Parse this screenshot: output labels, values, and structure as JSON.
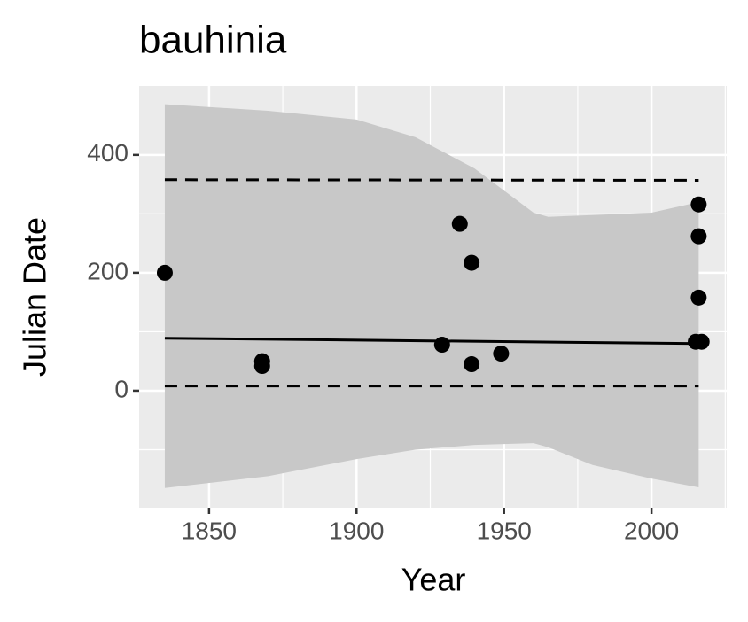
{
  "chart_data": {
    "type": "scatter",
    "title": "bauhinia",
    "x_label": "Year",
    "y_label": "Julian Date",
    "x": [
      1835,
      1868,
      1868,
      1929,
      1935,
      1939,
      1939,
      1949,
      2016,
      2016,
      2016,
      2015,
      2017
    ],
    "y": [
      200,
      50,
      42,
      78,
      283,
      217,
      45,
      63,
      316,
      262,
      158,
      83,
      83
    ],
    "point_color": "#000000",
    "trend": {
      "x": [
        1835,
        2016
      ],
      "y": [
        89,
        80
      ],
      "color": "#000000"
    },
    "quantile_lines": [
      {
        "x": [
          1835,
          2016
        ],
        "y": [
          358,
          357
        ]
      },
      {
        "x": [
          1835,
          2016
        ],
        "y": [
          8,
          8
        ]
      }
    ],
    "ribbon": {
      "color": "#c8c8c8",
      "x": [
        1835,
        1870,
        1900,
        1920,
        1940,
        1960,
        1965,
        1980,
        2000,
        2016
      ],
      "upper": [
        486,
        475,
        460,
        430,
        377,
        302,
        295,
        298,
        302,
        320
      ],
      "lower": [
        -165,
        -145,
        -116,
        -100,
        -92,
        -89,
        -96,
        -126,
        -149,
        -164
      ]
    },
    "xlim": [
      1826.3,
      2025.5
    ],
    "ylim": [
      -198.5,
      517
    ],
    "xticks": [
      1850,
      1900,
      1950,
      2000
    ],
    "yticks": [
      0,
      200,
      400
    ],
    "minor_xticks": [
      1875,
      1925,
      1975,
      2025
    ],
    "minor_yticks": [
      -100,
      100,
      300
    ],
    "grid": true
  }
}
